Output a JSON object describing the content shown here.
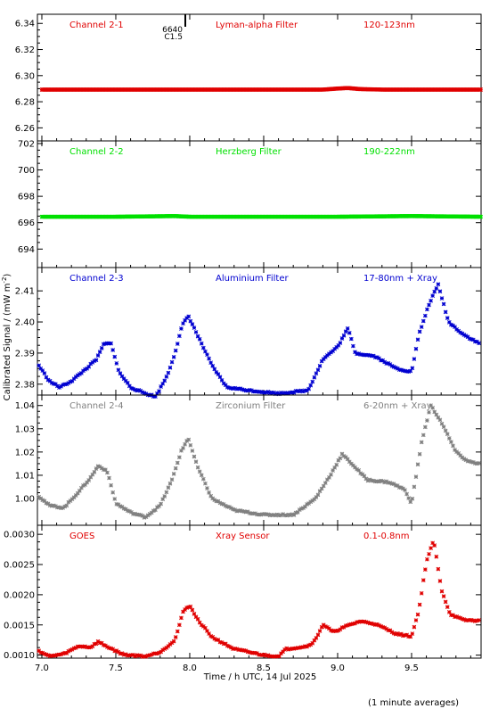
{
  "figure": {
    "xlabel": "Time / h UTC, 14 Jul 2025",
    "ylabel": "Calibrated Signal / (mW m",
    "ylabel_sup": "-2",
    "ylabel_end": ")",
    "footer_note": "(1 minute averages)"
  },
  "chart_data": [
    {
      "type": "scatter",
      "labels": [
        "Channel 2-1",
        "Lyman-alpha Filter",
        "120-123nm"
      ],
      "color": "#e00000",
      "xlim": [
        6.97,
        9.97
      ],
      "ylim": [
        6.25,
        6.347
      ],
      "yticks": [
        6.26,
        6.28,
        6.3,
        6.32,
        6.34
      ],
      "ytick_labels": [
        "6.26",
        "6.28",
        "6.30",
        "6.32",
        "6.34"
      ],
      "event": {
        "x": 7.97,
        "label_top": "6640",
        "label_bottom": "C1.5"
      },
      "points": [
        [
          7.0,
          6.2893
        ],
        [
          7.5,
          6.2893
        ],
        [
          8.0,
          6.2893
        ],
        [
          8.5,
          6.2893
        ],
        [
          8.9,
          6.2893
        ],
        [
          9.0,
          6.2901
        ],
        [
          9.07,
          6.2905
        ],
        [
          9.15,
          6.2897
        ],
        [
          9.3,
          6.2893
        ],
        [
          9.6,
          6.2893
        ],
        [
          9.97,
          6.2893
        ]
      ]
    },
    {
      "type": "scatter",
      "labels": [
        "Channel 2-2",
        "Herzberg Filter",
        "190-222nm"
      ],
      "color": "#00e000",
      "xlim": [
        6.97,
        9.97
      ],
      "ylim": [
        692.6,
        702.2
      ],
      "yticks": [
        694,
        696,
        698,
        700,
        702
      ],
      "ytick_labels": [
        "694",
        "696",
        "698",
        "700",
        "702"
      ],
      "points": [
        [
          7.0,
          696.45
        ],
        [
          7.5,
          696.45
        ],
        [
          7.9,
          696.5
        ],
        [
          8.0,
          696.45
        ],
        [
          8.5,
          696.45
        ],
        [
          9.0,
          696.45
        ],
        [
          9.5,
          696.5
        ],
        [
          9.97,
          696.45
        ]
      ]
    },
    {
      "type": "scatter",
      "labels": [
        "Channel 2-3",
        "Aluminium Filter",
        "17-80nm + Xray"
      ],
      "color": "#0000d0",
      "xlim": [
        6.97,
        9.97
      ],
      "ylim": [
        2.3765,
        2.4175
      ],
      "yticks": [
        2.38,
        2.39,
        2.4,
        2.41
      ],
      "ytick_labels": [
        "2.38",
        "2.39",
        "2.40",
        "2.41"
      ],
      "points": [
        [
          6.98,
          2.386
        ],
        [
          7.05,
          2.381
        ],
        [
          7.12,
          2.379
        ],
        [
          7.2,
          2.381
        ],
        [
          7.3,
          2.385
        ],
        [
          7.37,
          2.388
        ],
        [
          7.42,
          2.393
        ],
        [
          7.47,
          2.393
        ],
        [
          7.52,
          2.384
        ],
        [
          7.6,
          2.379
        ],
        [
          7.7,
          2.377
        ],
        [
          7.77,
          2.376
        ],
        [
          7.85,
          2.383
        ],
        [
          7.9,
          2.39
        ],
        [
          7.95,
          2.399
        ],
        [
          7.99,
          2.402
        ],
        [
          8.05,
          2.396
        ],
        [
          8.15,
          2.386
        ],
        [
          8.25,
          2.379
        ],
        [
          8.4,
          2.378
        ],
        [
          8.6,
          2.377
        ],
        [
          8.8,
          2.378
        ],
        [
          8.9,
          2.388
        ],
        [
          9.0,
          2.392
        ],
        [
          9.07,
          2.398
        ],
        [
          9.12,
          2.39
        ],
        [
          9.25,
          2.389
        ],
        [
          9.4,
          2.385
        ],
        [
          9.5,
          2.384
        ],
        [
          9.55,
          2.396
        ],
        [
          9.62,
          2.406
        ],
        [
          9.68,
          2.412
        ],
        [
          9.75,
          2.4
        ],
        [
          9.85,
          2.396
        ],
        [
          9.96,
          2.393
        ]
      ]
    },
    {
      "type": "scatter",
      "labels": [
        "Channel 2-4",
        "Zirconium Filter",
        "6-20nm + Xray"
      ],
      "color": "#808080",
      "xlim": [
        6.97,
        9.97
      ],
      "ylim": [
        0.9885,
        1.0445
      ],
      "yticks": [
        1.0,
        1.01,
        1.02,
        1.03,
        1.04
      ],
      "ytick_labels": [
        "1.00",
        "1.01",
        "1.02",
        "1.03",
        "1.04"
      ],
      "points": [
        [
          6.98,
          1.001
        ],
        [
          7.05,
          0.997
        ],
        [
          7.15,
          0.996
        ],
        [
          7.25,
          1.003
        ],
        [
          7.33,
          1.009
        ],
        [
          7.38,
          1.014
        ],
        [
          7.44,
          1.012
        ],
        [
          7.5,
          0.998
        ],
        [
          7.6,
          0.994
        ],
        [
          7.7,
          0.992
        ],
        [
          7.8,
          0.997
        ],
        [
          7.88,
          1.008
        ],
        [
          7.94,
          1.02
        ],
        [
          7.99,
          1.026
        ],
        [
          8.05,
          1.014
        ],
        [
          8.15,
          1.0
        ],
        [
          8.3,
          0.995
        ],
        [
          8.5,
          0.993
        ],
        [
          8.7,
          0.993
        ],
        [
          8.85,
          1.0
        ],
        [
          8.95,
          1.01
        ],
        [
          9.03,
          1.019
        ],
        [
          9.08,
          1.016
        ],
        [
          9.2,
          1.008
        ],
        [
          9.35,
          1.007
        ],
        [
          9.45,
          1.004
        ],
        [
          9.5,
          0.998
        ],
        [
          9.57,
          1.025
        ],
        [
          9.63,
          1.04
        ],
        [
          9.7,
          1.033
        ],
        [
          9.8,
          1.02
        ],
        [
          9.88,
          1.016
        ],
        [
          9.96,
          1.015
        ]
      ]
    },
    {
      "type": "scatter",
      "labels": [
        "GOES",
        "Xray Sensor",
        "0.1-0.8nm"
      ],
      "color": "#e00000",
      "xlim": [
        6.97,
        9.97
      ],
      "ylim": [
        0.00095,
        0.00315
      ],
      "yticks": [
        0.001,
        0.0015,
        0.002,
        0.0025,
        0.003
      ],
      "ytick_labels": [
        "0.0010",
        "0.0015",
        "0.0020",
        "0.0025",
        "0.0030"
      ],
      "points": [
        [
          6.98,
          0.00107
        ],
        [
          7.05,
          0.00098
        ],
        [
          7.15,
          0.00102
        ],
        [
          7.25,
          0.00115
        ],
        [
          7.33,
          0.00113
        ],
        [
          7.38,
          0.00122
        ],
        [
          7.45,
          0.00113
        ],
        [
          7.55,
          0.00101
        ],
        [
          7.7,
          0.00098
        ],
        [
          7.8,
          0.00105
        ],
        [
          7.9,
          0.00125
        ],
        [
          7.96,
          0.00175
        ],
        [
          8.0,
          0.00182
        ],
        [
          8.05,
          0.0016
        ],
        [
          8.15,
          0.0013
        ],
        [
          8.3,
          0.0011
        ],
        [
          8.5,
          0.001
        ],
        [
          8.6,
          0.00098
        ],
        [
          8.65,
          0.0011
        ],
        [
          8.8,
          0.00115
        ],
        [
          8.85,
          0.00125
        ],
        [
          8.9,
          0.00151
        ],
        [
          8.97,
          0.00138
        ],
        [
          9.05,
          0.00147
        ],
        [
          9.15,
          0.00156
        ],
        [
          9.25,
          0.00152
        ],
        [
          9.4,
          0.00135
        ],
        [
          9.5,
          0.00131
        ],
        [
          9.55,
          0.00175
        ],
        [
          9.6,
          0.00255
        ],
        [
          9.65,
          0.0029
        ],
        [
          9.7,
          0.0021
        ],
        [
          9.76,
          0.00168
        ],
        [
          9.85,
          0.00158
        ],
        [
          9.96,
          0.00157
        ]
      ]
    }
  ],
  "x_axis": {
    "ticks": [
      7.0,
      7.5,
      8.0,
      8.5,
      9.0,
      9.5
    ],
    "tick_labels": [
      "7.0",
      "7.5",
      "8.0",
      "8.5",
      "9.0",
      "9.5"
    ]
  }
}
